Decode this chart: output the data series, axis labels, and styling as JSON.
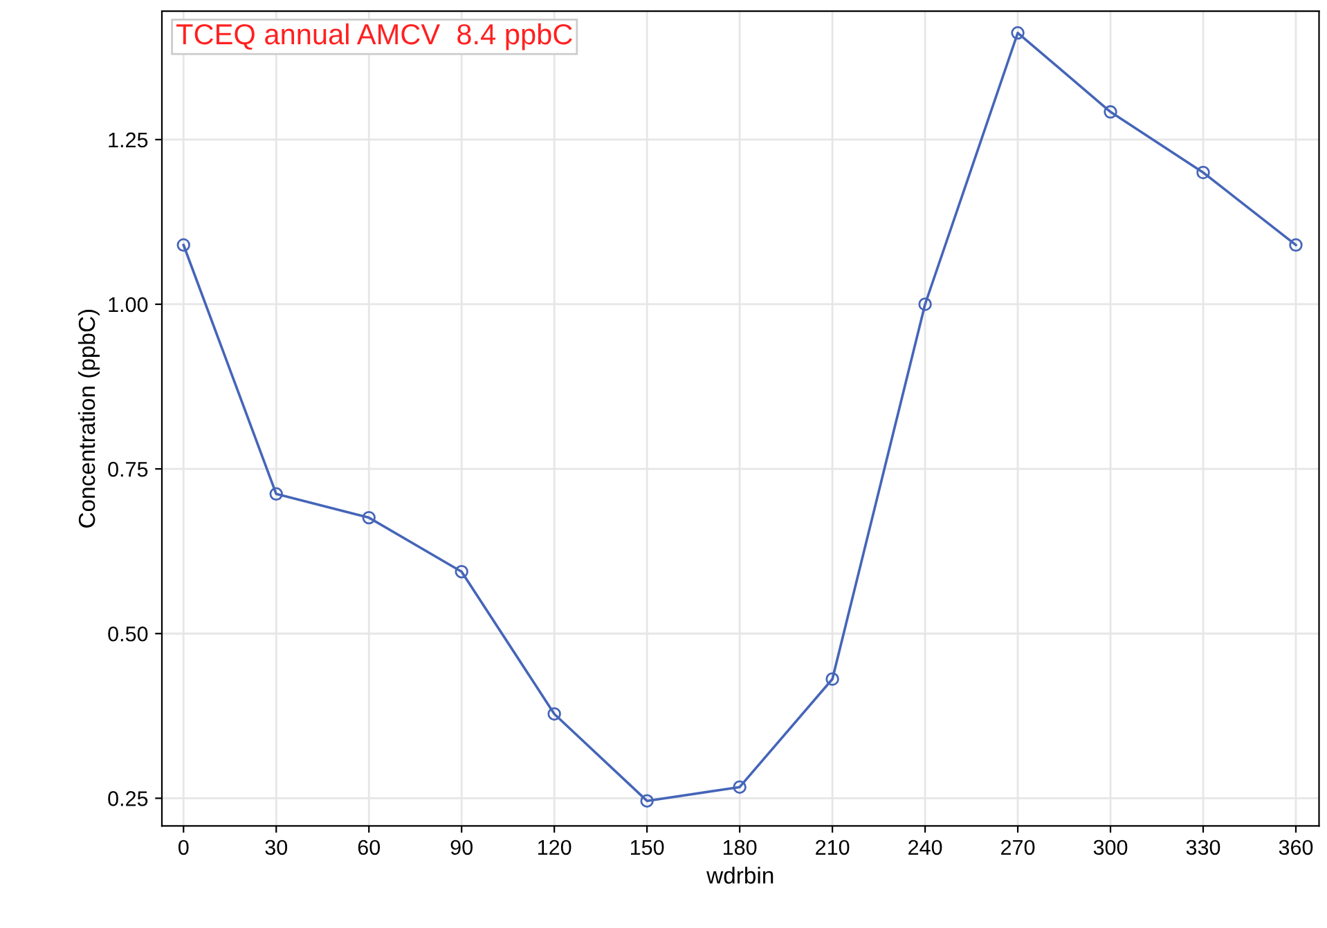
{
  "chart_data": {
    "type": "line",
    "xlabel": "wdrbin",
    "ylabel": "Concentration (ppbC)",
    "annotations": [
      "TCEQ annual AMCV  8.4 ppbC"
    ],
    "x": [
      0,
      30,
      60,
      90,
      120,
      150,
      180,
      210,
      240,
      270,
      300,
      330,
      360
    ],
    "series": [
      {
        "color": "#4565b8",
        "values": [
          1.09,
          0.712,
          0.676,
          0.594,
          0.378,
          0.246,
          0.267,
          0.431,
          1.0,
          1.412,
          1.292,
          1.2,
          1.09
        ]
      }
    ],
    "xlim": [
      -7,
      367.5
    ],
    "ylim": [
      0.208,
      1.445
    ],
    "xticks": [
      0,
      30,
      60,
      90,
      120,
      150,
      180,
      210,
      240,
      270,
      300,
      330,
      360
    ],
    "yticks": [
      {
        "value": 0.25,
        "label": "0.25"
      },
      {
        "value": 0.5,
        "label": "0.50"
      },
      {
        "value": 0.75,
        "label": "0.75"
      },
      {
        "value": 1.0,
        "label": "1.00"
      },
      {
        "value": 1.25,
        "label": "1.25"
      }
    ],
    "grid": true,
    "marker": "circle",
    "line_style": "solid",
    "legend": false
  }
}
